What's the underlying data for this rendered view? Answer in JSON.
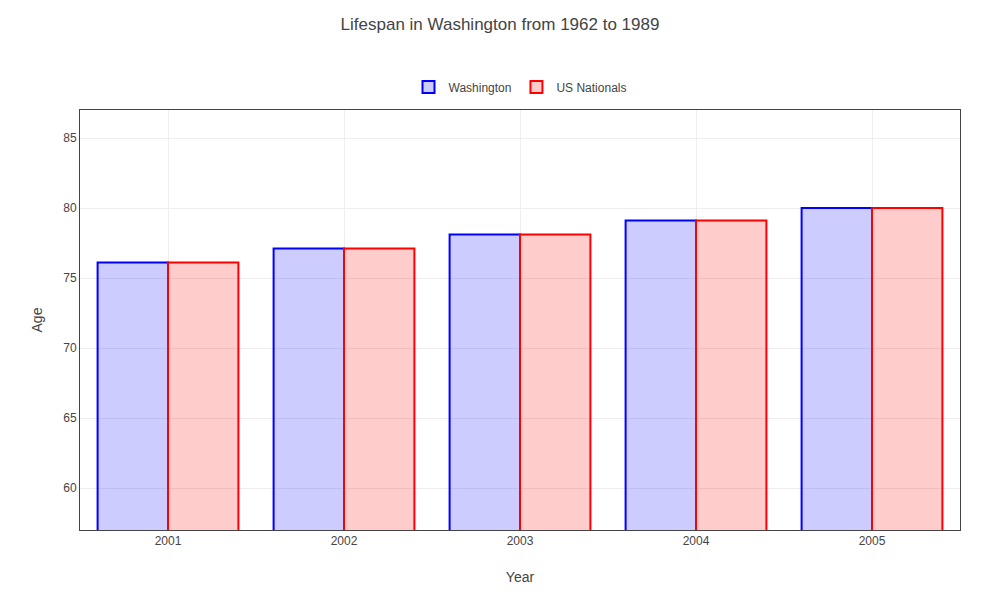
{
  "chart_data": {
    "type": "bar",
    "title": "Lifespan in Washington from 1962 to 1989",
    "x_label": "Year",
    "y_label": "Age",
    "categories": [
      "2001",
      "2002",
      "2003",
      "2004",
      "2005"
    ],
    "series": [
      {
        "name": "Washington",
        "color": "#0000ff",
        "values": [
          76.1,
          77.1,
          78.1,
          79.1,
          80.0
        ]
      },
      {
        "name": "US Nationals",
        "color": "#ff0000",
        "values": [
          76.1,
          77.1,
          78.1,
          79.1,
          80.0
        ]
      }
    ],
    "ylim": [
      57,
      87
    ],
    "yticks": [
      60,
      65,
      70,
      75,
      80,
      85
    ],
    "grid": true,
    "legend": "top"
  }
}
